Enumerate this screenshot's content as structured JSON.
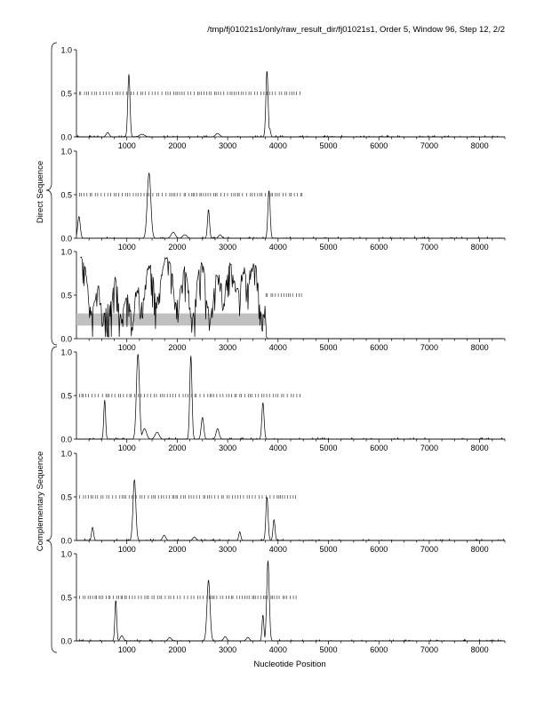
{
  "header": {
    "title": "/tmp/fj01021s1/only/raw_result_dir/fj01021s1, Order 5, Window 96, Step 12, 2/2"
  },
  "groups": {
    "direct": "Direct Sequence",
    "complementary": "Complementary Sequence"
  },
  "chart_data": {
    "type": "line",
    "xlabel": "Nucleotide Position",
    "xlim": [
      0,
      8500
    ],
    "ylim": [
      0,
      1
    ],
    "xticks": [
      1000,
      2000,
      3000,
      4000,
      5000,
      6000,
      7000,
      8000
    ],
    "xtick_labels": [
      "1000",
      "2000",
      "3000",
      "4000",
      "5000",
      "6000",
      "7000",
      "8000"
    ],
    "yticks": [
      0,
      0.5,
      1
    ],
    "ytick_labels": [
      "0.0",
      "0.5",
      "1.0"
    ],
    "colors": {
      "line": "#000000",
      "marks": "#555555",
      "band": "#c0c0c0"
    },
    "panels": [
      {
        "group": "direct",
        "peaks": [
          [
            620,
            0.05,
            30
          ],
          [
            1040,
            0.72,
            22
          ],
          [
            1300,
            0.03,
            50
          ],
          [
            2800,
            0.04,
            40
          ],
          [
            3780,
            0.76,
            22
          ],
          [
            3830,
            0.1,
            20
          ]
        ],
        "marks_range": [
          50,
          4500
        ],
        "band": null,
        "jagged": false
      },
      {
        "group": "direct",
        "peaks": [
          [
            50,
            0.25,
            25
          ],
          [
            1440,
            0.75,
            35
          ],
          [
            1920,
            0.07,
            40
          ],
          [
            2150,
            0.04,
            40
          ],
          [
            2620,
            0.33,
            20
          ],
          [
            2850,
            0.04,
            30
          ],
          [
            3820,
            0.55,
            22
          ]
        ],
        "marks_range": [
          50,
          4500
        ],
        "band": null,
        "jagged": false
      },
      {
        "group": "direct",
        "peaks": [],
        "marks_range": [
          3750,
          4500
        ],
        "band": [
          0,
          3750,
          0.15,
          0.29
        ],
        "jagged": true,
        "jagged_range": [
          80,
          3750
        ],
        "dips": [
          [
            300,
            0.08
          ],
          [
            530,
            0.1
          ],
          [
            650,
            0.14
          ],
          [
            900,
            0.08
          ],
          [
            1100,
            0.06
          ],
          [
            1300,
            0.2
          ],
          [
            1600,
            0.3
          ],
          [
            2000,
            0.2
          ],
          [
            2300,
            0.03
          ],
          [
            2650,
            0.04
          ],
          [
            2900,
            0.4
          ],
          [
            3200,
            0.4
          ],
          [
            3400,
            0.55
          ],
          [
            3700,
            0.03
          ]
        ]
      },
      {
        "group": "complementary",
        "peaks": [
          [
            560,
            0.45,
            18
          ],
          [
            1220,
            0.98,
            30
          ],
          [
            1350,
            0.12,
            40
          ],
          [
            1600,
            0.08,
            40
          ],
          [
            2270,
            0.96,
            22
          ],
          [
            2500,
            0.25,
            25
          ],
          [
            2800,
            0.12,
            30
          ],
          [
            3700,
            0.42,
            22
          ]
        ],
        "marks_range": [
          50,
          4500
        ],
        "band": null,
        "jagged": false
      },
      {
        "group": "complementary",
        "peaks": [
          [
            320,
            0.15,
            20
          ],
          [
            1150,
            0.7,
            28
          ],
          [
            1740,
            0.06,
            30
          ],
          [
            2340,
            0.04,
            30
          ],
          [
            3240,
            0.1,
            20
          ],
          [
            3780,
            0.5,
            22
          ],
          [
            3920,
            0.24,
            20
          ]
        ],
        "marks_range": [
          50,
          4400
        ],
        "band": null,
        "jagged": false
      },
      {
        "group": "complementary",
        "peaks": [
          [
            780,
            0.47,
            18
          ],
          [
            900,
            0.06,
            30
          ],
          [
            1850,
            0.04,
            30
          ],
          [
            2620,
            0.7,
            30
          ],
          [
            2950,
            0.05,
            30
          ],
          [
            3400,
            0.04,
            30
          ],
          [
            3700,
            0.3,
            18
          ],
          [
            3800,
            0.92,
            25
          ]
        ],
        "marks_range": [
          50,
          4400
        ],
        "band": null,
        "jagged": false
      }
    ]
  }
}
